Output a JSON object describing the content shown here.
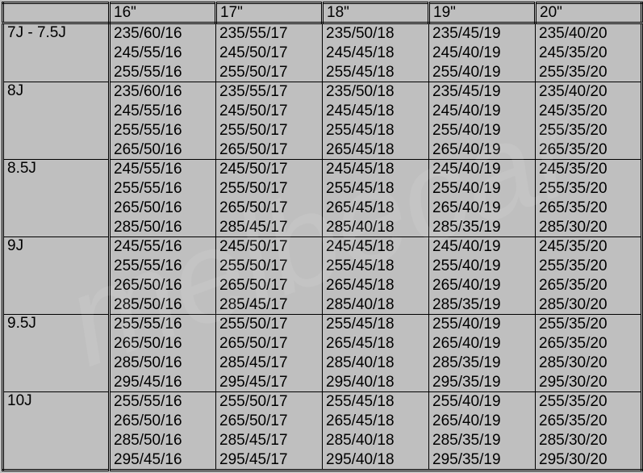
{
  "table": {
    "background_color": "#bfbfbf",
    "text_color": "#000000",
    "font_family": "Arial",
    "font_size_pt": 14,
    "border_style_outer": "double",
    "columns": [
      "",
      "16\"",
      "17\"",
      "18\"",
      "19\"",
      "20\""
    ],
    "rows": [
      {
        "label": "7J - 7.5J",
        "cells": [
          [
            "235/60/16",
            "245/55/16",
            "255/55/16"
          ],
          [
            "235/55/17",
            "245/50/17",
            "255/50/17"
          ],
          [
            "235/50/18",
            "245/45/18",
            "255/45/18"
          ],
          [
            "235/45/19",
            "245/40/19",
            "255/40/19"
          ],
          [
            "235/40/20",
            "245/35/20",
            "255/35/20"
          ]
        ]
      },
      {
        "label": "8J",
        "cells": [
          [
            "235/60/16",
            "245/55/16",
            "255/55/16",
            "265/50/16"
          ],
          [
            "235/55/17",
            "245/50/17",
            "255/50/17",
            "265/50/17"
          ],
          [
            "235/50/18",
            "245/45/18",
            "255/45/18",
            "265/45/18"
          ],
          [
            "235/45/19",
            "245/40/19",
            "255/40/19",
            "265/40/19"
          ],
          [
            "235/40/20",
            "245/35/20",
            "255/35/20",
            "265/35/20"
          ]
        ]
      },
      {
        "label": "8.5J",
        "cells": [
          [
            "245/55/16",
            "255/55/16",
            "265/50/16",
            "285/50/16"
          ],
          [
            "245/50/17",
            "255/50/17",
            "265/50/17",
            "285/45/17"
          ],
          [
            "245/45/18",
            "255/45/18",
            "265/45/18",
            "285/40/18"
          ],
          [
            "245/40/19",
            "255/40/19",
            "265/40/19",
            "285/35/19"
          ],
          [
            "245/35/20",
            "255/35/20",
            "265/35/20",
            "285/30/20"
          ]
        ]
      },
      {
        "label": "9J",
        "cells": [
          [
            "245/55/16",
            "255/55/16",
            "265/50/16",
            "285/50/16"
          ],
          [
            "245/50/17",
            "255/50/17",
            "265/50/17",
            "285/45/17"
          ],
          [
            "245/45/18",
            "255/45/18",
            "265/45/18",
            "285/40/18"
          ],
          [
            "245/40/19",
            "255/40/19",
            "265/40/19",
            "285/35/19"
          ],
          [
            "245/35/20",
            "255/35/20",
            "265/35/20",
            "285/30/20"
          ]
        ]
      },
      {
        "label": "9.5J",
        "cells": [
          [
            "255/55/16",
            "265/50/16",
            "285/50/16",
            "295/45/16"
          ],
          [
            "255/50/17",
            "265/50/17",
            "285/45/17",
            "295/45/17"
          ],
          [
            "255/45/18",
            "265/45/18",
            "285/40/18",
            "295/40/18"
          ],
          [
            "255/40/19",
            "265/40/19",
            "285/35/19",
            "295/35/19"
          ],
          [
            "255/35/20",
            "265/35/20",
            "285/30/20",
            "295/30/20"
          ]
        ]
      },
      {
        "label": "10J",
        "cells": [
          [
            "255/55/16",
            "265/50/16",
            "285/50/16",
            "295/45/16"
          ],
          [
            "255/50/17",
            "265/50/17",
            "285/45/17",
            "295/45/17"
          ],
          [
            "255/45/18",
            "265/45/18",
            "285/40/18",
            "295/40/18"
          ],
          [
            "255/40/19",
            "265/40/19",
            "285/35/19",
            "295/35/19"
          ],
          [
            "255/35/20",
            "265/35/20",
            "285/30/20",
            "295/30/20"
          ]
        ]
      }
    ]
  }
}
